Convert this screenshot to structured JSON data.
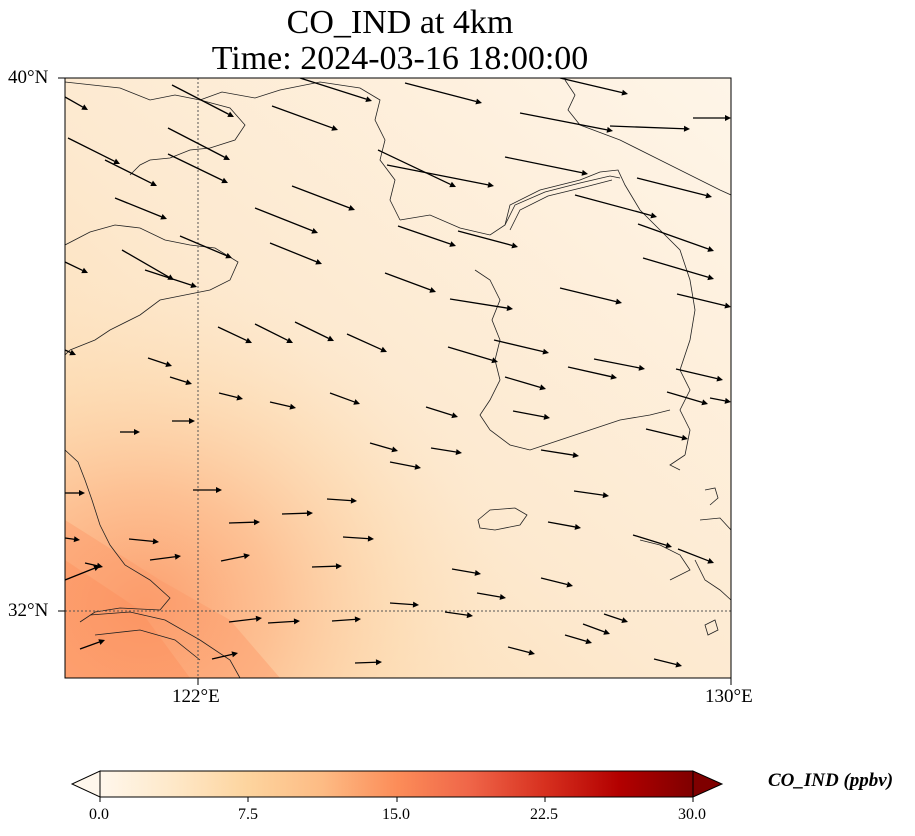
{
  "title": {
    "line1": "CO_IND at 4km",
    "line2": "Time: 2024-03-16 18:00:00"
  },
  "axes": {
    "lat_labels": [
      "40°N",
      "32°N"
    ],
    "lon_labels": [
      "122°E",
      "130°E"
    ],
    "lat_range": [
      31.0,
      40.0
    ],
    "lon_range": [
      120.0,
      130.0
    ],
    "gridlines": "dotted at 122°E and 32°N"
  },
  "colorbar": {
    "label": "CO_IND (ppbv)",
    "ticks": [
      "0.0",
      "7.5",
      "15.0",
      "22.5",
      "30.0"
    ],
    "range": [
      0,
      30
    ],
    "extend": "both",
    "colormap": "OrRd",
    "colors": [
      "#fff7ec",
      "#fee8c8",
      "#fdd49e",
      "#fdbb84",
      "#fc8d59",
      "#ef6548",
      "#d7301f",
      "#b30000",
      "#7f0000"
    ]
  },
  "wind_arrows": "black quiver arrows, predominantly west-northwest to east-southeast flow"
}
